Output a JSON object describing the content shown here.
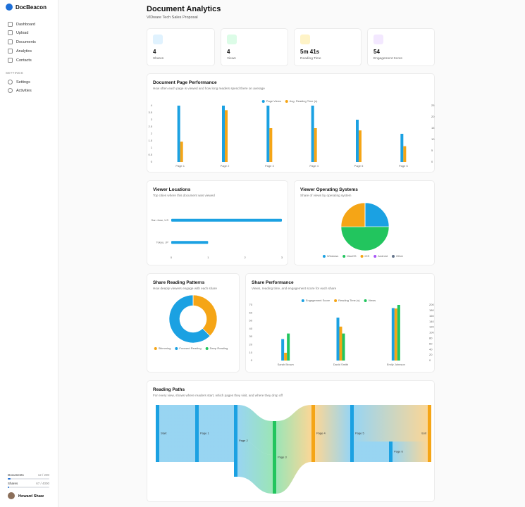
{
  "sidebar": {
    "brand": "DocBeacon",
    "nav": [
      "Dashboard",
      "Upload",
      "Documents",
      "Analytics",
      "Contacts"
    ],
    "settings_label": "SETTINGS",
    "settings_nav": [
      "Settings",
      "Activities"
    ],
    "usage": [
      {
        "label": "Documents",
        "value": "12 / 200"
      },
      {
        "label": "Shares",
        "value": "67 / 4000"
      }
    ],
    "user": "Howard Shaw"
  },
  "header": {
    "title": "Document Analytics",
    "subtitle": "VIDware Tech Sales Proposal"
  },
  "stats": [
    {
      "value": "4",
      "label": "Shares"
    },
    {
      "value": "4",
      "label": "Views"
    },
    {
      "value": "5m 41s",
      "label": "Reading Time"
    },
    {
      "value": "54",
      "label": "Engagement Score"
    }
  ],
  "chart_data": [
    {
      "type": "bar",
      "title": "Document Page Performance",
      "subtitle": "How often each page is viewed and how long readers spend there on average",
      "categories": [
        "Page 1",
        "Page 2",
        "Page 3",
        "Page 4",
        "Page 5",
        "Page 6"
      ],
      "series": [
        {
          "name": "Page Views",
          "color": "#1ba1e2",
          "values": [
            4,
            4,
            4,
            4,
            3,
            2
          ]
        },
        {
          "name": "Avg. Reading Time (s)",
          "color": "#f5a516",
          "axis": "y2",
          "values": [
            9,
            23,
            15,
            15,
            14,
            7
          ]
        }
      ],
      "ylim": [
        0,
        4
      ],
      "yticks": [
        0,
        0.5,
        1,
        1.5,
        2,
        2.5,
        3,
        3.5,
        4
      ],
      "y2lim": [
        0,
        25
      ],
      "y2ticks": [
        0,
        5,
        10,
        15,
        20,
        25
      ],
      "legend": "top"
    },
    {
      "type": "bar",
      "orientation": "horizontal",
      "title": "Viewer Locations",
      "subtitle": "Top cities where this document was viewed",
      "categories": [
        "San Jose, US",
        "Tokyo, JP"
      ],
      "values": [
        3,
        1
      ],
      "color": "#1ba1e2",
      "xlim": [
        0,
        3
      ],
      "xticks": [
        0,
        1,
        2,
        3
      ]
    },
    {
      "type": "pie",
      "title": "Viewer Operating Systems",
      "subtitle": "Share of views by operating system",
      "categories": [
        "Windows",
        "MacOS",
        "iOS",
        "Android",
        "Other"
      ],
      "values": [
        1,
        2,
        1,
        0,
        0
      ],
      "colors": [
        "#1ba1e2",
        "#22c55e",
        "#f5a516",
        "#a855f7",
        "#64748b"
      ],
      "legend": "bottom"
    },
    {
      "type": "doughnut",
      "title": "Share Reading Patterns",
      "subtitle": "How deeply viewers engage with each share",
      "categories": [
        "Skimming",
        "Focused Reading",
        "Deep Reading"
      ],
      "values": [
        3,
        5,
        0
      ],
      "colors": [
        "#f5a516",
        "#1ba1e2",
        "#22c55e"
      ],
      "legend": "bottom"
    },
    {
      "type": "bar",
      "title": "Share Performance",
      "subtitle": "Views, reading time, and engagement score for each share",
      "categories": [
        "Sarah Brown",
        "David Smith",
        "Emily Johnson"
      ],
      "series": [
        {
          "name": "Engagement Score",
          "color": "#1ba1e2",
          "values": [
            27,
            54,
            66
          ]
        },
        {
          "name": "Reading Time (s)",
          "color": "#f5a516",
          "axis": "y2",
          "values": [
            28,
            122,
            187
          ]
        },
        {
          "name": "Views",
          "color": "#22c55e",
          "values": [
            34,
            34,
            70
          ]
        }
      ],
      "ylim": [
        0,
        70
      ],
      "yticks": [
        0,
        10,
        20,
        30,
        40,
        50,
        60,
        70
      ],
      "y2lim": [
        0,
        200
      ],
      "y2ticks": [
        0,
        20,
        40,
        60,
        80,
        100,
        120,
        140,
        160,
        180,
        200
      ],
      "legend": "top"
    }
  ],
  "reading_paths": {
    "title": "Reading Paths",
    "subtitle": "For every view, shows where readers start, which pages they visit, and where they drop off",
    "nodes": [
      "Start",
      "Page 1",
      "Page 2",
      "Page 3",
      "Page 4",
      "Page 5",
      "Page 6",
      "Exit"
    ]
  }
}
